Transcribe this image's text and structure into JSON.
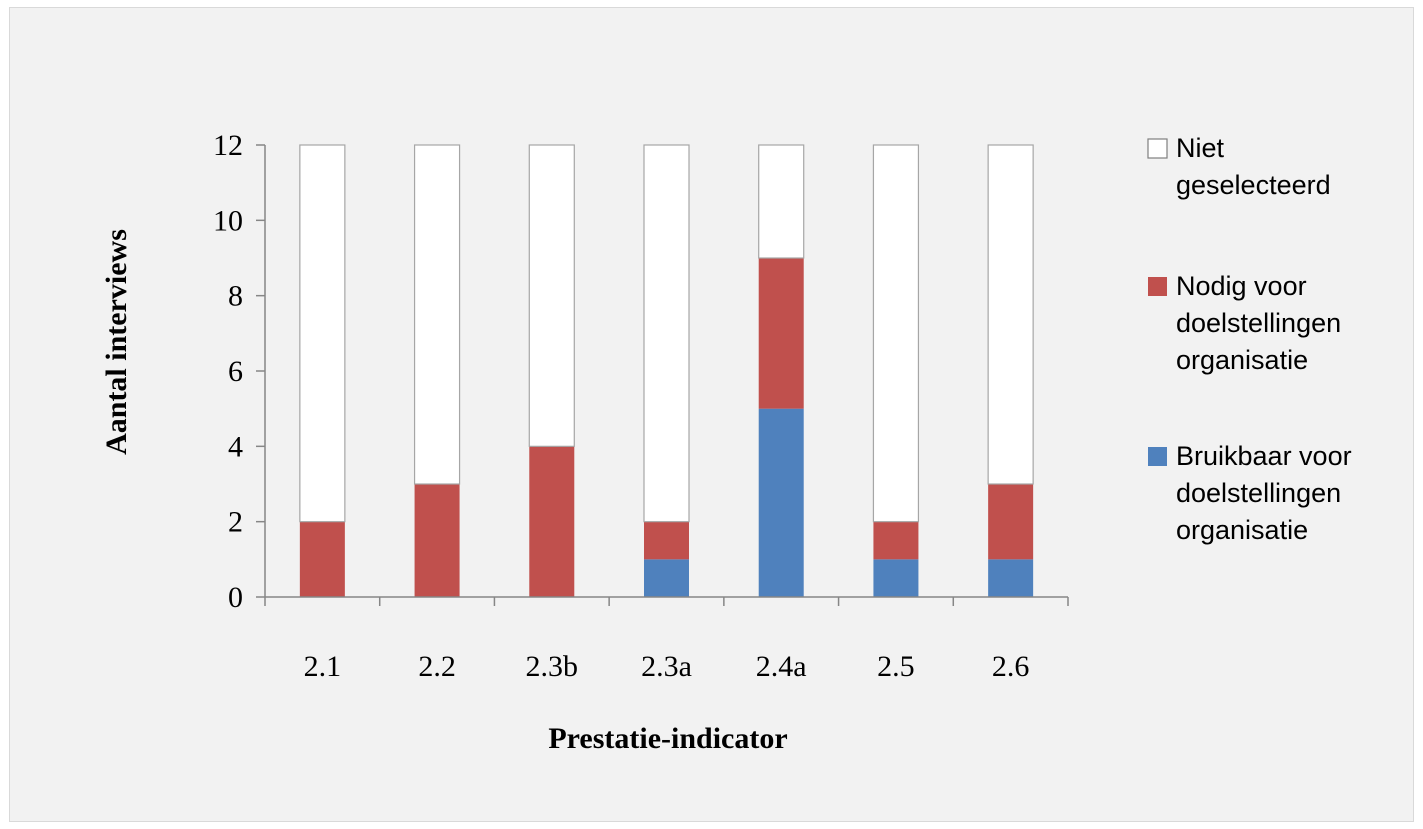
{
  "chart_data": {
    "type": "bar",
    "stacked": true,
    "categories": [
      "2.1",
      "2.2",
      "2.3b",
      "2.3a",
      "2.4a",
      "2.5",
      "2.6"
    ],
    "series": [
      {
        "name": "Bruikbaar voor doelstellingen organisatie",
        "values": [
          0,
          0,
          0,
          1,
          5,
          1,
          1
        ],
        "color": "#4f81bd"
      },
      {
        "name": "Nodig voor doelstellingen organisatie",
        "values": [
          2,
          3,
          4,
          1,
          4,
          1,
          2
        ],
        "color": "#c0504d"
      },
      {
        "name": "Niet geselecteerd",
        "values": [
          10,
          9,
          8,
          10,
          3,
          10,
          9
        ],
        "color": "#ffffff"
      }
    ],
    "xlabel": "Prestatie-indicator",
    "ylabel": "Aantal interviews",
    "ylim": [
      0,
      12
    ],
    "yticks": [
      0,
      2,
      4,
      6,
      8,
      10,
      12
    ],
    "grid": false,
    "legend_position": "right"
  },
  "legend": [
    {
      "lines": [
        "Niet",
        "geselecteerd"
      ],
      "color": "#ffffff"
    },
    {
      "lines": [
        "Nodig voor",
        "doelstellingen",
        "organisatie"
      ],
      "color": "#c0504d"
    },
    {
      "lines": [
        "Bruikbaar voor",
        "doelstellingen",
        "organisatie"
      ],
      "color": "#4f81bd"
    }
  ],
  "colors": {
    "background": "#f2f2f2",
    "axis": "#868686",
    "bar_outline": "#a6a6a6"
  }
}
